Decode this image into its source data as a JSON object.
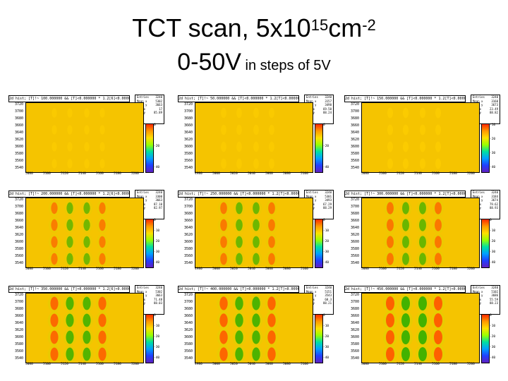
{
  "slide": {
    "title_main": "TCT scan, 5x10",
    "title_sup1": "15",
    "title_mid": "cm",
    "title_sup2": "-2",
    "subtitle_big": "0-50V",
    "subtitle_small": " in steps of 5V"
  },
  "colors": {
    "background": "#f5c400",
    "hot": "#ff5a00",
    "cold": "#3ab000",
    "mid": "#c8e000"
  },
  "panels": [
    {
      "header": "2d hist; [T]!~ 100.000000 && [T]<0.000000 * 1.2[6]<0.000000",
      "stats": [
        [
          "Entries",
          "3240"
        ],
        [
          "Mean x",
          "5302"
        ],
        [
          "Mean y",
          "3663"
        ],
        [
          "RMS x",
          "17"
        ],
        [
          "RMS y",
          "85.89"
        ]
      ],
      "yticks": [
        "3720",
        "3700",
        "3680",
        "3660",
        "3640",
        "3620",
        "3600",
        "3580",
        "3560",
        "3540"
      ],
      "xticks": [
        "5080",
        "5100",
        "5120",
        "5140",
        "5160",
        "5180",
        "5200"
      ],
      "cticks": [
        "0",
        "-20",
        "-40"
      ],
      "intensity": 0.2
    },
    {
      "header": "2d hist; [T]!~ 50.000000 && [T]<0.000000 * 1.2[T]<0.000000",
      "stats": [
        [
          "Entries",
          "3240"
        ],
        [
          "Mean x",
          "3157"
        ],
        [
          "Mean y",
          "3490"
        ],
        [
          "RMS x",
          "69.50"
        ],
        [
          "RMS y",
          "88.24"
        ]
      ],
      "yticks": [
        "3720",
        "3700",
        "3680",
        "3660",
        "3640",
        "3620",
        "3600",
        "3580",
        "3560",
        "3540"
      ],
      "xticks": [
        "4980",
        "5000",
        "5020",
        "5040",
        "5060",
        "5080",
        "5100"
      ],
      "cticks": [
        "0",
        "-20",
        "-40"
      ],
      "intensity": 0.3
    },
    {
      "header": "2d hist; [T]!~ 150.000000 && [T]<0.000000 * 1.2[T]<0.000000",
      "stats": [
        [
          "Entries",
          "3240"
        ],
        [
          "Mean x",
          "3160"
        ],
        [
          "Mean y",
          "3673"
        ],
        [
          "RMS x",
          "23.49"
        ],
        [
          "RMS y",
          "88.82"
        ]
      ],
      "yticks": [
        "3720",
        "3700",
        "3680",
        "3660",
        "3640",
        "3620",
        "3600",
        "3580",
        "3560",
        "3540"
      ],
      "xticks": [
        "5080",
        "5100",
        "5120",
        "5140",
        "5160",
        "5180",
        "5200"
      ],
      "cticks": [
        "-10",
        "-20",
        "-30",
        "-40"
      ],
      "intensity": 0.35
    },
    {
      "header": "2d hist; [T]!~ 200.000000 && [T]<0.000000 * 1.2[6]<0.000000",
      "stats": [
        [
          "Entries",
          "3240"
        ],
        [
          "Mean x",
          "3300"
        ],
        [
          "Mean y",
          "3663"
        ],
        [
          "RMS x",
          "87.10"
        ],
        [
          "RMS y",
          "82.97"
        ]
      ],
      "yticks": [
        "3720",
        "3700",
        "3680",
        "3660",
        "3640",
        "3620",
        "3600",
        "3580",
        "3560",
        "3540"
      ],
      "xticks": [
        "5080",
        "5100",
        "5120",
        "5140",
        "5160",
        "5180",
        "5200"
      ],
      "cticks": [
        "0",
        "-10",
        "-20",
        "-30",
        "-40"
      ],
      "intensity": 0.55
    },
    {
      "header": "2d hist; [T]!~ 250.000000 && [T]<0.000000 * 1.2[T]<0.000000",
      "stats": [
        [
          "Entries",
          "3240"
        ],
        [
          "Mean x",
          "5301"
        ],
        [
          "Mean y",
          "3493"
        ],
        [
          "RMS x",
          "67.29"
        ],
        [
          "RMS y",
          "88.29"
        ]
      ],
      "yticks": [
        "3720",
        "3700",
        "3680",
        "3660",
        "3640",
        "3620",
        "3600",
        "3580",
        "3560",
        "3540"
      ],
      "xticks": [
        "4980",
        "5000",
        "5020",
        "5040",
        "5060",
        "5080",
        "5100"
      ],
      "cticks": [
        "0",
        "-10",
        "-20",
        "-30",
        "-40"
      ],
      "intensity": 0.6
    },
    {
      "header": "2d hist; [T]!~ 300.000000 && [T]<0.000000 * 1.2[T]<0.000000",
      "stats": [
        [
          "Entries",
          "3240"
        ],
        [
          "Mean x",
          "3184"
        ],
        [
          "Mean y",
          "3674"
        ],
        [
          "RMS x",
          "79.62"
        ],
        [
          "RMS y",
          "88.93"
        ]
      ],
      "yticks": [
        "3720",
        "3700",
        "3680",
        "3660",
        "3640",
        "3620",
        "3600",
        "3580",
        "3560",
        "3540"
      ],
      "xticks": [
        "5080",
        "5100",
        "5120",
        "5140",
        "5160",
        "5180",
        "5200"
      ],
      "cticks": [
        "0",
        "-10",
        "-20",
        "-30",
        "-40"
      ],
      "intensity": 0.65
    },
    {
      "header": "2d hist; [T]!~ 350.000000 && [T]<0.000000 * 1.2[6]<0.000000",
      "stats": [
        [
          "Entries",
          "3240"
        ],
        [
          "Mean x",
          "5302"
        ],
        [
          "Mean y",
          "3663"
        ],
        [
          "RMS x",
          "71.48"
        ],
        [
          "RMS y",
          "88.03"
        ]
      ],
      "yticks": [
        "3720",
        "3700",
        "3680",
        "3660",
        "3640",
        "3620",
        "3600",
        "3580",
        "3560",
        "3540"
      ],
      "xticks": [
        "5080",
        "5100",
        "5120",
        "5140",
        "5160",
        "5180",
        "5200"
      ],
      "cticks": [
        "0",
        "-10",
        "-20",
        "-30",
        "-40"
      ],
      "intensity": 0.85
    },
    {
      "header": "2d hist; [T]!~ 400.000000 && [T]<0.000000 * 1.2[T]<0.000000",
      "stats": [
        [
          "Entries",
          "3240"
        ],
        [
          "Mean x",
          "5151"
        ],
        [
          "Mean y",
          "3543"
        ],
        [
          "RMS x",
          "68.3"
        ],
        [
          "RMS y",
          "88.21"
        ]
      ],
      "yticks": [
        "3720",
        "3700",
        "3680",
        "3660",
        "3640",
        "3620",
        "3600",
        "3580",
        "3560",
        "3540"
      ],
      "xticks": [
        "4980",
        "5000",
        "5020",
        "5040",
        "5060",
        "5080",
        "5100"
      ],
      "cticks": [
        "0",
        "-10",
        "-20",
        "-30",
        "-40"
      ],
      "intensity": 0.9
    },
    {
      "header": "2d hist; [T]!~ 450.000000 && [T]<0.000000 * 1.2[T]<0.000000",
      "stats": [
        [
          "Entries",
          "3240"
        ],
        [
          "Mean x",
          "5102"
        ],
        [
          "Mean y",
          "3686"
        ],
        [
          "RMS x",
          "55.59"
        ],
        [
          "RMS y",
          "88.23"
        ]
      ],
      "yticks": [
        "3720",
        "3700",
        "3680",
        "3660",
        "3640",
        "3620",
        "3600",
        "3580",
        "3560",
        "3540"
      ],
      "xticks": [
        "5080",
        "5100",
        "5120",
        "5140",
        "5160",
        "5180",
        "5200"
      ],
      "cticks": [
        "0",
        "-10",
        "-20",
        "-30",
        "-40"
      ],
      "intensity": 1.0
    }
  ]
}
